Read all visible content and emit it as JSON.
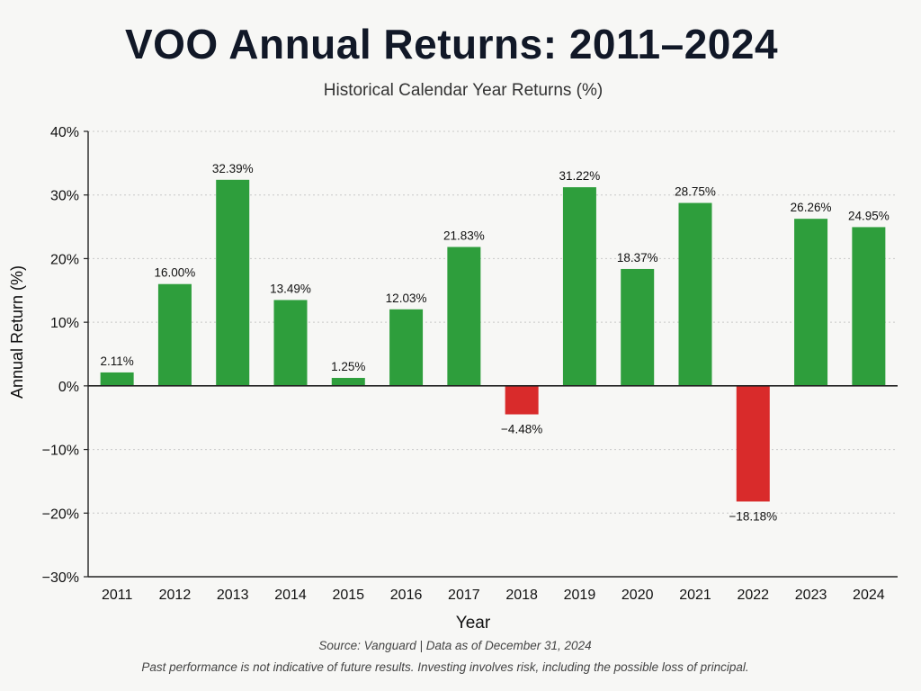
{
  "chart_data": {
    "type": "bar",
    "title": "VOO Annual Returns: 2011–2024",
    "subtitle": "Historical Calendar Year Returns (%)",
    "xlabel": "Year",
    "ylabel": "Annual Return (%)",
    "categories": [
      "2011",
      "2012",
      "2013",
      "2014",
      "2015",
      "2016",
      "2017",
      "2018",
      "2019",
      "2020",
      "2021",
      "2022",
      "2023",
      "2024"
    ],
    "values": [
      2.11,
      16.0,
      32.39,
      13.49,
      1.25,
      12.03,
      21.83,
      -4.48,
      31.22,
      18.37,
      28.75,
      -18.18,
      26.26,
      24.95
    ],
    "value_labels": [
      "2.11%",
      "16.00%",
      "32.39%",
      "13.49%",
      "1.25%",
      "12.03%",
      "21.83%",
      "−4.48%",
      "31.22%",
      "18.37%",
      "28.75%",
      "−18.18%",
      "26.26%",
      "24.95%"
    ],
    "ylim": [
      -30,
      40
    ],
    "yticks": [
      40,
      30,
      20,
      10,
      0,
      -10,
      -20,
      -30
    ],
    "ytick_labels": [
      "40%",
      "30%",
      "20%",
      "10%",
      "0%",
      "−10%",
      "−20%",
      "−30%"
    ],
    "grid": true,
    "colors": {
      "positive": "#2e9e3c",
      "negative": "#d92b2b"
    }
  },
  "footer": {
    "source": "Source:  Vanguard   |   Data as of December 31, 2024",
    "disclaimer": "Past performance is not indicative of future results.  Investing involves risk, including the possible loss of principal."
  }
}
